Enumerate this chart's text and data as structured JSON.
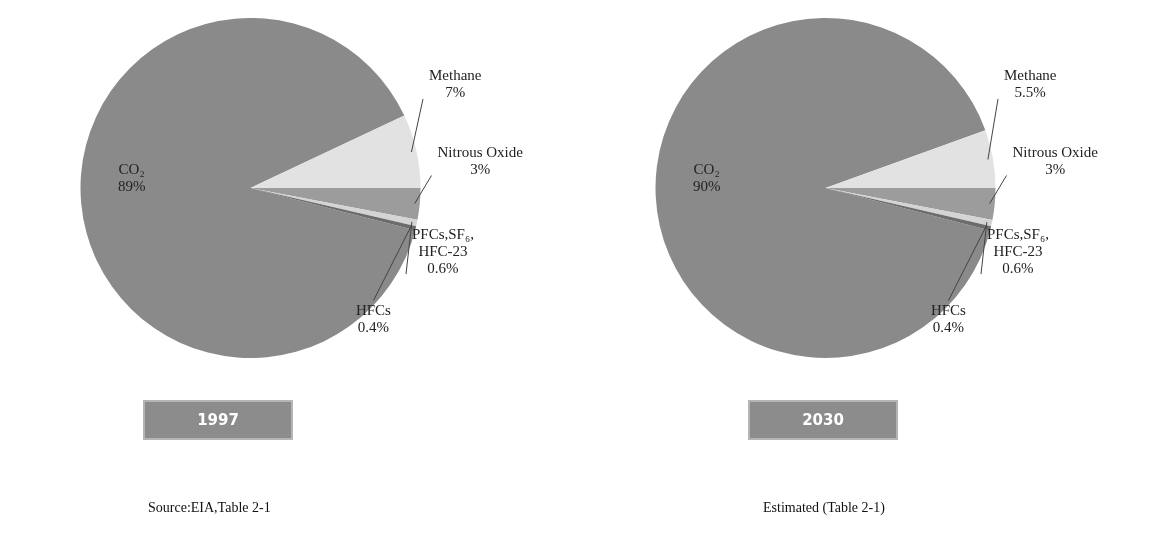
{
  "chart_data": [
    {
      "type": "pie",
      "title": "1997",
      "categories": [
        "CO₂",
        "Methane",
        "Nitrous Oxide",
        "PFCs,SF₆, HFC-23",
        "HFCs"
      ],
      "values": [
        89,
        7,
        3,
        0.6,
        0.4
      ],
      "colors": [
        "#8a8a8a",
        "#e2e2e2",
        "#9c9c9c",
        "#d4d4d4",
        "#6c6c6c"
      ],
      "value_labels": [
        "89%",
        "7%",
        "3%",
        "0.6%",
        "0.4%"
      ],
      "annotations": [
        "Source:EIA,Table 2-1"
      ]
    },
    {
      "type": "pie",
      "title": "2030",
      "categories": [
        "CO₂",
        "Methane",
        "Nitrous Oxide",
        "PFCs,SF₆, HFC-23",
        "HFCs"
      ],
      "values": [
        90,
        5.5,
        3,
        0.6,
        0.4
      ],
      "colors": [
        "#8a8a8a",
        "#e2e2e2",
        "#9c9c9c",
        "#d4d4d4",
        "#6c6c6c"
      ],
      "value_labels": [
        "90%",
        "5.5%",
        "3%",
        "0.6%",
        "0.4%"
      ],
      "annotations": [
        "Estimated (Table 2-1)"
      ]
    }
  ]
}
